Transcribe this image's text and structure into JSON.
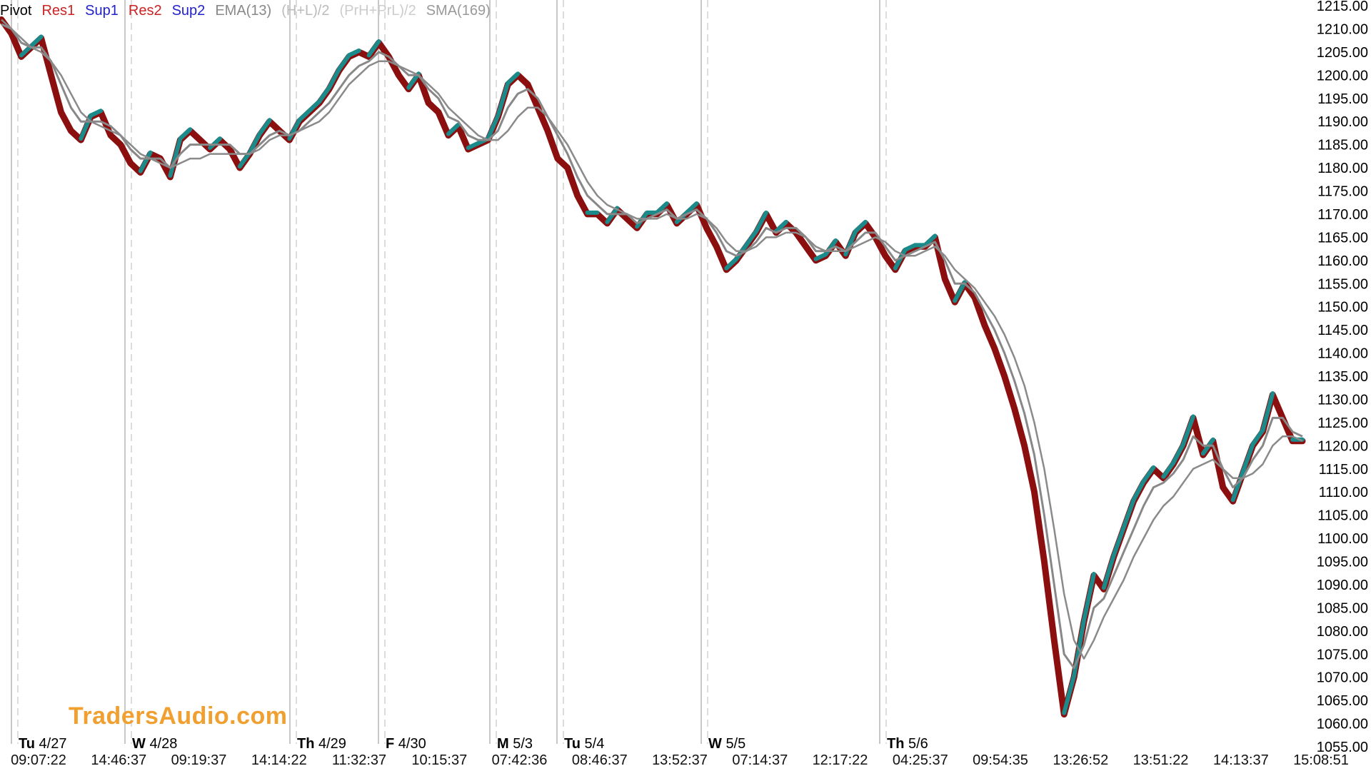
{
  "legend": [
    {
      "label": "Pivot",
      "color": "#000000"
    },
    {
      "label": "Res1",
      "color": "#cc2222"
    },
    {
      "label": "Sup1",
      "color": "#2222cc"
    },
    {
      "label": "Res2",
      "color": "#cc2222"
    },
    {
      "label": "Sup2",
      "color": "#2222cc"
    },
    {
      "label": "EMA(13)",
      "color": "#888888"
    },
    {
      "label": "(H+L)/2",
      "color": "#bbbbbb"
    },
    {
      "label": "(PrH+PrL)/2",
      "color": "#cccccc"
    },
    {
      "label": "SMA(169)",
      "color": "#999999"
    }
  ],
  "watermark": "TradersAudio.com",
  "chart_data": {
    "type": "line",
    "title": "",
    "ylim": [
      1055,
      1215
    ],
    "yticks": [
      "1215.00",
      "1210.00",
      "1205.00",
      "1200.00",
      "1195.00",
      "1190.00",
      "1185.00",
      "1180.00",
      "1175.00",
      "1170.00",
      "1165.00",
      "1160.00",
      "1155.00",
      "1150.00",
      "1145.00",
      "1140.00",
      "1135.00",
      "1130.00",
      "1125.00",
      "1120.00",
      "1115.00",
      "1110.00",
      "1105.00",
      "1100.00",
      "1095.00",
      "1090.00",
      "1085.00",
      "1080.00",
      "1075.00",
      "1070.00",
      "1065.00",
      "1060.00",
      "1055.00"
    ],
    "xticks": [
      "09:07:22",
      "14:46:37",
      "09:19:37",
      "14:14:22",
      "11:32:37",
      "10:15:37",
      "07:42:36",
      "08:46:37",
      "13:52:37",
      "07:14:37",
      "12:17:22",
      "04:25:37",
      "09:54:35",
      "13:26:52",
      "13:51:22",
      "14:13:37",
      "15:08:51"
    ],
    "day_labels": [
      {
        "day": "Tu",
        "date": "4/27"
      },
      {
        "day": "W",
        "date": "4/28"
      },
      {
        "day": "Th",
        "date": "4/29"
      },
      {
        "day": "F",
        "date": "4/30"
      },
      {
        "day": "M",
        "date": "5/3"
      },
      {
        "day": "Tu",
        "date": "5/4"
      },
      {
        "day": "W",
        "date": "5/5"
      },
      {
        "day": "Th",
        "date": "5/6"
      }
    ],
    "colors": {
      "up": "#1a8a8a",
      "down": "#8b0f0f",
      "ema": "#888888",
      "sma": "#8a8a8a"
    },
    "series": [
      {
        "role": "price",
        "values": [
          1212,
          1209,
          1204,
          1206,
          1208,
          1200,
          1192,
          1188,
          1186,
          1191,
          1192,
          1187,
          1185,
          1181,
          1179,
          1183,
          1182,
          1178,
          1186,
          1188,
          1186,
          1184,
          1186,
          1184,
          1180,
          1183,
          1187,
          1190,
          1188,
          1186,
          1190,
          1192,
          1194,
          1197,
          1201,
          1204,
          1205,
          1204,
          1207,
          1204,
          1200,
          1197,
          1200,
          1194,
          1192,
          1187,
          1189,
          1184,
          1185,
          1186,
          1191,
          1198,
          1200,
          1198,
          1193,
          1188,
          1182,
          1180,
          1174,
          1170,
          1170,
          1168,
          1171,
          1169,
          1167,
          1170,
          1170,
          1172,
          1168,
          1170,
          1172,
          1167,
          1163,
          1158,
          1160,
          1163,
          1166,
          1170,
          1166,
          1168,
          1166,
          1163,
          1160,
          1161,
          1164,
          1161,
          1166,
          1168,
          1165,
          1161,
          1158,
          1162,
          1163,
          1163,
          1165,
          1156,
          1151,
          1155,
          1152,
          1146,
          1141,
          1135,
          1128,
          1120,
          1110,
          1095,
          1078,
          1062,
          1070,
          1082,
          1092,
          1089,
          1096,
          1102,
          1108,
          1112,
          1115,
          1113,
          1116,
          1120,
          1126,
          1118,
          1121,
          1111,
          1108,
          1114,
          1120,
          1123,
          1131,
          1126,
          1121,
          1121
        ]
      },
      {
        "role": "ema",
        "values": [
          1211,
          1210,
          1207,
          1206,
          1206,
          1203,
          1198,
          1193,
          1190,
          1190,
          1190,
          1189,
          1187,
          1184,
          1182,
          1182,
          1182,
          1180,
          1183,
          1185,
          1185,
          1185,
          1185,
          1185,
          1183,
          1183,
          1185,
          1187,
          1188,
          1187,
          1188,
          1190,
          1192,
          1194,
          1197,
          1200,
          1202,
          1203,
          1205,
          1204,
          1202,
          1200,
          1200,
          1197,
          1195,
          1191,
          1190,
          1187,
          1186,
          1186,
          1188,
          1193,
          1196,
          1197,
          1195,
          1191,
          1187,
          1183,
          1178,
          1174,
          1172,
          1170,
          1170,
          1170,
          1168,
          1169,
          1170,
          1171,
          1169,
          1170,
          1171,
          1169,
          1166,
          1162,
          1161,
          1162,
          1164,
          1167,
          1166,
          1167,
          1167,
          1165,
          1162,
          1162,
          1163,
          1162,
          1164,
          1166,
          1166,
          1163,
          1160,
          1161,
          1162,
          1163,
          1164,
          1160,
          1155,
          1155,
          1153,
          1149,
          1145,
          1140,
          1134,
          1127,
          1118,
          1105,
          1090,
          1075,
          1072,
          1077,
          1085,
          1087,
          1092,
          1097,
          1102,
          1107,
          1111,
          1112,
          1114,
          1117,
          1122,
          1120,
          1120,
          1115,
          1111,
          1113,
          1117,
          1120,
          1126,
          1126,
          1123,
          1122
        ]
      },
      {
        "role": "sma",
        "values": [
          1212,
          1210,
          1208,
          1206,
          1205,
          1203,
          1200,
          1196,
          1192,
          1190,
          1189,
          1188,
          1187,
          1185,
          1183,
          1182,
          1181,
          1180,
          1181,
          1182,
          1182,
          1183,
          1183,
          1183,
          1183,
          1183,
          1184,
          1186,
          1187,
          1187,
          1188,
          1189,
          1190,
          1192,
          1195,
          1198,
          1200,
          1202,
          1203,
          1203,
          1202,
          1201,
          1200,
          1198,
          1196,
          1193,
          1191,
          1189,
          1187,
          1186,
          1186,
          1188,
          1191,
          1193,
          1193,
          1191,
          1188,
          1185,
          1181,
          1177,
          1174,
          1172,
          1171,
          1170,
          1169,
          1169,
          1169,
          1170,
          1169,
          1169,
          1170,
          1169,
          1167,
          1164,
          1162,
          1162,
          1163,
          1165,
          1165,
          1166,
          1166,
          1165,
          1163,
          1162,
          1162,
          1162,
          1163,
          1164,
          1165,
          1164,
          1162,
          1161,
          1161,
          1162,
          1163,
          1161,
          1158,
          1156,
          1154,
          1151,
          1148,
          1144,
          1139,
          1133,
          1125,
          1115,
          1102,
          1088,
          1078,
          1074,
          1078,
          1083,
          1087,
          1091,
          1096,
          1100,
          1104,
          1107,
          1109,
          1112,
          1115,
          1116,
          1117,
          1115,
          1113,
          1113,
          1114,
          1116,
          1120,
          1122,
          1122,
          1121
        ]
      }
    ]
  }
}
